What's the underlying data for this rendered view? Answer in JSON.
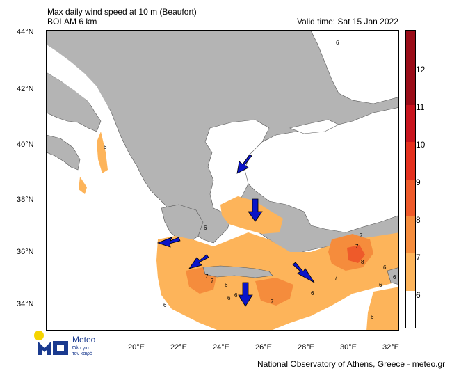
{
  "header": {
    "title_line1": "Max daily wind speed at 10 m (Beaufort)",
    "title_line2": "BOLAM 6 km",
    "valid_time": "Valid time: Sat 15 Jan 2022"
  },
  "axes": {
    "lat_labels": [
      "44°N",
      "42°N",
      "40°N",
      "38°N",
      "36°N",
      "34°N"
    ],
    "lon_labels": [
      "20°E",
      "22°E",
      "24°E",
      "26°E",
      "28°E",
      "30°E",
      "32°E"
    ]
  },
  "colorbar": {
    "labels": [
      "6",
      "7",
      "8",
      "9",
      "10",
      "11",
      "12"
    ],
    "colors": [
      "#ffffff",
      "#fdb45a",
      "#f58c3c",
      "#ee5a2a",
      "#e4301e",
      "#c8141e",
      "#9a0c18"
    ]
  },
  "map_labels": [
    "6",
    "6",
    "6",
    "7",
    "7",
    "8",
    "7",
    "6",
    "6",
    "7",
    "6",
    "6",
    "7",
    "6",
    "7",
    "6",
    "6",
    "6",
    "6"
  ],
  "logo": {
    "name": "Meteo",
    "tagline_line1": "Όλα για",
    "tagline_line2": "τον καιρό"
  },
  "footer": "National Observatory of Athens, Greece - meteo.gr",
  "colors": {
    "land": "#b4b4b4",
    "sea": "#ffffff",
    "wind_6_7": "#fdb45a",
    "wind_7_8": "#f58c3c",
    "arrow": "#0a14c8",
    "logo_blue": "#1a3a8f",
    "logo_sun": "#f5d400"
  }
}
